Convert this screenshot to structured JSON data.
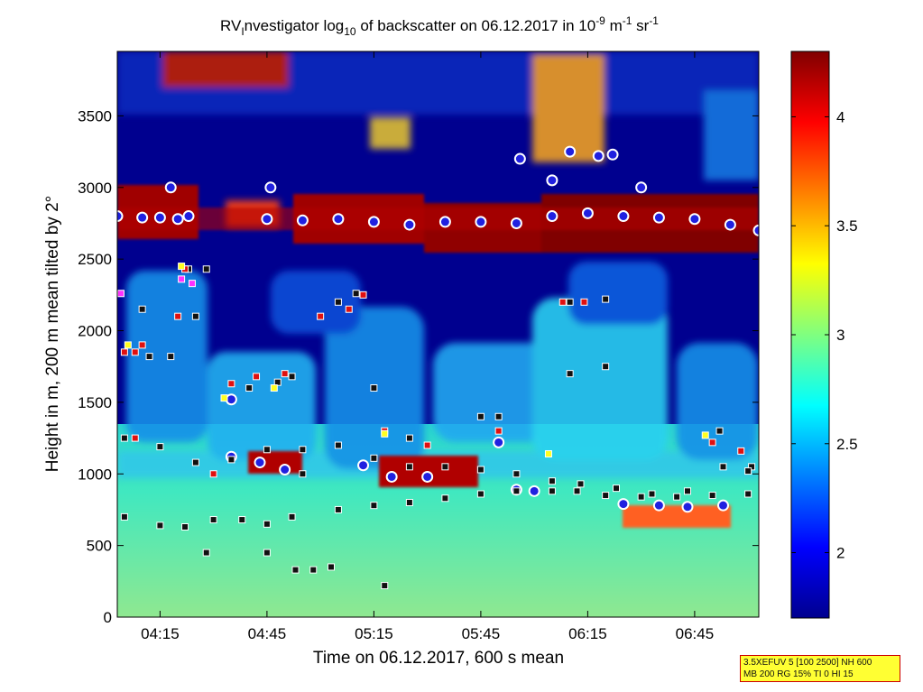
{
  "chart_data": {
    "type": "heatmap",
    "title": {
      "prefix": "RV",
      "sub1": "I",
      "mid": "nvestigator log",
      "sub2": "10",
      "rest": " of backscatter on 06.12.2017 in 10",
      "sup1": "-9",
      "unit1": " m",
      "sup2": "-1",
      "unit2": " sr",
      "sup3": "-1"
    },
    "xlabel": "Time on 06.12.2017, 600 s mean",
    "ylabel": "Height in m, 200 m mean tilted by 2°",
    "x_ticks": [
      "04:15",
      "04:45",
      "05:15",
      "05:45",
      "06:15",
      "06:45"
    ],
    "x_tick_minutes": [
      255,
      285,
      315,
      345,
      375,
      405
    ],
    "xlim_minutes": [
      243,
      423
    ],
    "y_ticks": [
      0,
      500,
      1000,
      1500,
      2000,
      2500,
      3000,
      3500
    ],
    "ylim": [
      0,
      3950
    ],
    "colorbar": {
      "ticks": [
        "2",
        "2.5",
        "3",
        "3.5",
        "4"
      ],
      "tick_values": [
        2,
        2.5,
        3,
        3.5,
        4
      ],
      "range": [
        1.7,
        4.3
      ],
      "colormap": "jet"
    },
    "series": [
      {
        "marker": "circle-white-blue",
        "points": [
          [
            243,
            2800
          ],
          [
            250,
            2790
          ],
          [
            255,
            2790
          ],
          [
            260,
            2780
          ],
          [
            263,
            2800
          ],
          [
            285,
            2780
          ],
          [
            295,
            2770
          ],
          [
            305,
            2780
          ],
          [
            315,
            2760
          ],
          [
            325,
            2740
          ],
          [
            335,
            2760
          ],
          [
            345,
            2760
          ],
          [
            355,
            2750
          ],
          [
            365,
            2800
          ],
          [
            375,
            2820
          ],
          [
            385,
            2800
          ],
          [
            395,
            2790
          ],
          [
            405,
            2780
          ],
          [
            415,
            2740
          ],
          [
            423,
            2700
          ]
        ]
      },
      {
        "marker": "circle-white-blue",
        "points": [
          [
            258,
            3000
          ],
          [
            275,
            1520
          ],
          [
            286,
            3000
          ],
          [
            356,
            3200
          ],
          [
            365,
            3050
          ],
          [
            370,
            3250
          ],
          [
            378,
            3220
          ],
          [
            382,
            3230
          ],
          [
            390,
            3000
          ],
          [
            350,
            1220
          ],
          [
            275,
            1120
          ],
          [
            283,
            1080
          ],
          [
            290,
            1030
          ],
          [
            312,
            1060
          ],
          [
            320,
            980
          ],
          [
            330,
            980
          ],
          [
            355,
            890
          ],
          [
            360,
            880
          ],
          [
            385,
            790
          ],
          [
            395,
            780
          ],
          [
            403,
            770
          ],
          [
            413,
            780
          ]
        ]
      },
      {
        "marker": "square-black",
        "points": [
          [
            245,
            700
          ],
          [
            255,
            640
          ],
          [
            262,
            630
          ],
          [
            270,
            680
          ],
          [
            278,
            680
          ],
          [
            285,
            650
          ],
          [
            292,
            700
          ],
          [
            305,
            750
          ],
          [
            315,
            780
          ],
          [
            325,
            800
          ],
          [
            335,
            830
          ],
          [
            345,
            860
          ],
          [
            355,
            880
          ],
          [
            365,
            880
          ],
          [
            372,
            880
          ],
          [
            380,
            850
          ],
          [
            390,
            840
          ],
          [
            400,
            840
          ],
          [
            410,
            850
          ],
          [
            420,
            860
          ],
          [
            245,
            1250
          ],
          [
            255,
            1190
          ],
          [
            265,
            1080
          ],
          [
            275,
            1100
          ],
          [
            285,
            1170
          ],
          [
            295,
            1170
          ],
          [
            305,
            1200
          ],
          [
            315,
            1110
          ],
          [
            325,
            1050
          ],
          [
            335,
            1050
          ],
          [
            345,
            1030
          ],
          [
            355,
            1000
          ],
          [
            365,
            950
          ],
          [
            373,
            930
          ],
          [
            383,
            900
          ],
          [
            393,
            860
          ],
          [
            403,
            880
          ],
          [
            413,
            1050
          ],
          [
            421,
            1050
          ],
          [
            250,
            2150
          ],
          [
            252,
            1820
          ],
          [
            258,
            1820
          ],
          [
            263,
            2430
          ],
          [
            268,
            2430
          ],
          [
            265,
            2100
          ],
          [
            280,
            1600
          ],
          [
            288,
            1640
          ],
          [
            292,
            1680
          ],
          [
            295,
            1000
          ],
          [
            305,
            2200
          ],
          [
            310,
            2260
          ],
          [
            315,
            1600
          ],
          [
            325,
            1250
          ],
          [
            345,
            1400
          ],
          [
            350,
            1400
          ],
          [
            370,
            1700
          ],
          [
            380,
            1750
          ],
          [
            370,
            2200
          ],
          [
            380,
            2220
          ],
          [
            412,
            1300
          ],
          [
            420,
            1020
          ],
          [
            268,
            450
          ],
          [
            285,
            450
          ],
          [
            293,
            330
          ],
          [
            298,
            330
          ],
          [
            303,
            350
          ],
          [
            318,
            220
          ]
        ]
      },
      {
        "marker": "square-red",
        "points": [
          [
            245,
            1850
          ],
          [
            248,
            1850
          ],
          [
            250,
            1900
          ],
          [
            260,
            2100
          ],
          [
            262,
            2430
          ],
          [
            248,
            1250
          ],
          [
            270,
            1000
          ],
          [
            275,
            1630
          ],
          [
            282,
            1680
          ],
          [
            290,
            1700
          ],
          [
            300,
            2100
          ],
          [
            308,
            2150
          ],
          [
            312,
            2250
          ],
          [
            318,
            1300
          ],
          [
            330,
            1200
          ],
          [
            350,
            1300
          ],
          [
            368,
            2200
          ],
          [
            374,
            2200
          ],
          [
            410,
            1220
          ],
          [
            418,
            1160
          ]
        ]
      },
      {
        "marker": "square-yellow",
        "points": [
          [
            246,
            1900
          ],
          [
            261,
            2450
          ],
          [
            273,
            1530
          ],
          [
            287,
            1600
          ],
          [
            318,
            1280
          ],
          [
            364,
            1140
          ],
          [
            408,
            1270
          ]
        ]
      },
      {
        "marker": "square-magenta",
        "points": [
          [
            244,
            2260
          ],
          [
            261,
            2360
          ],
          [
            264,
            2330
          ]
        ]
      }
    ]
  },
  "info_box": {
    "line1": "3.5XEFUV 5 [100 2500] NH 600",
    "line2": "MB 200 RG 15% TI 0 HI 15"
  }
}
